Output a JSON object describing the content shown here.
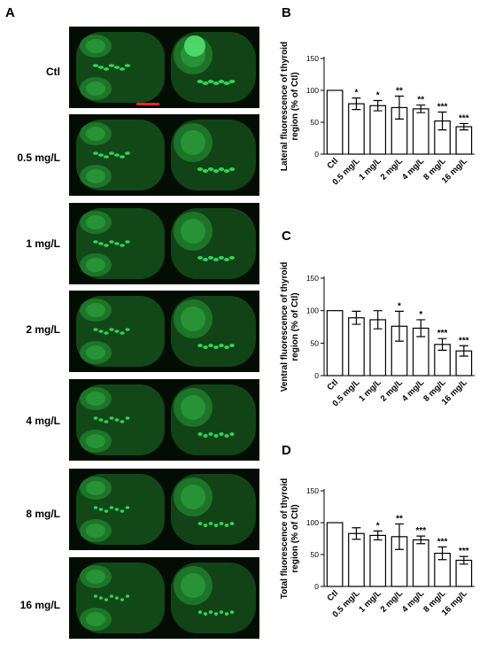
{
  "panel_letters": {
    "a": "A",
    "b": "B",
    "c": "C",
    "d": "D"
  },
  "image_rows": [
    "Ctl",
    "0.5 mg/L",
    "1 mg/L",
    "2 mg/L",
    "4 mg/L",
    "8 mg/L",
    "16 mg/L"
  ],
  "colors": {
    "fluorescence": "#2fd45a",
    "tissue": "#1f7a2a",
    "background": "#040d04",
    "scale_bar": "#e8232a"
  },
  "chart_data": [
    {
      "type": "bar",
      "ylabel": "Lateral fluorescence of thyroid region (% of Ctl)",
      "ylabel_lines": [
        "Lateral fluorescence of thyroid",
        "region (% of Ctl)"
      ],
      "categories": [
        "Ctl",
        "0.5 mg/L",
        "1 mg/L",
        "2 mg/L",
        "4 mg/L",
        "8 mg/L",
        "16 mg/L"
      ],
      "values": [
        100,
        79,
        76,
        73,
        71,
        52,
        43
      ],
      "errors": [
        0,
        9,
        8,
        18,
        6,
        14,
        5
      ],
      "significance": [
        "",
        "*",
        "*",
        "**",
        "**",
        "***",
        "***"
      ],
      "ylim": [
        0,
        150
      ],
      "yticks": [
        "0",
        "50",
        "100",
        "150"
      ]
    },
    {
      "type": "bar",
      "ylabel": "Ventral fluorescence of thyroid region (% of Ctl)",
      "ylabel_lines": [
        "Ventral fluorescence of thyroid",
        "region (% of Ctl)"
      ],
      "categories": [
        "Ctl",
        "0.5 mg/L",
        "1 mg/L",
        "2 mg/L",
        "4 mg/L",
        "8 mg/L",
        "16 mg/L"
      ],
      "values": [
        100,
        89,
        86,
        76,
        73,
        48,
        38
      ],
      "errors": [
        0,
        10,
        14,
        23,
        13,
        9,
        8
      ],
      "significance": [
        "",
        "",
        "",
        "*",
        "*",
        "***",
        "***"
      ],
      "ylim": [
        0,
        150
      ],
      "yticks": [
        "0",
        "50",
        "100",
        "150"
      ]
    },
    {
      "type": "bar",
      "ylabel": "Total fluorescence of thyroid region (% of Ctl)",
      "ylabel_lines": [
        "Total fluorescence of thyroid",
        "region (% of Ctl)"
      ],
      "categories": [
        "Ctl",
        "0.5 mg/L",
        "1 mg/L",
        "2 mg/L",
        "4 mg/L",
        "8 mg/L",
        "16 mg/L"
      ],
      "values": [
        100,
        83,
        80,
        78,
        73,
        52,
        41
      ],
      "errors": [
        0,
        9,
        7,
        20,
        6,
        10,
        6
      ],
      "significance": [
        "",
        "",
        "*",
        "**",
        "***",
        "***",
        "***"
      ],
      "ylim": [
        0,
        150
      ],
      "yticks": [
        "0",
        "50",
        "100",
        "150"
      ]
    }
  ]
}
